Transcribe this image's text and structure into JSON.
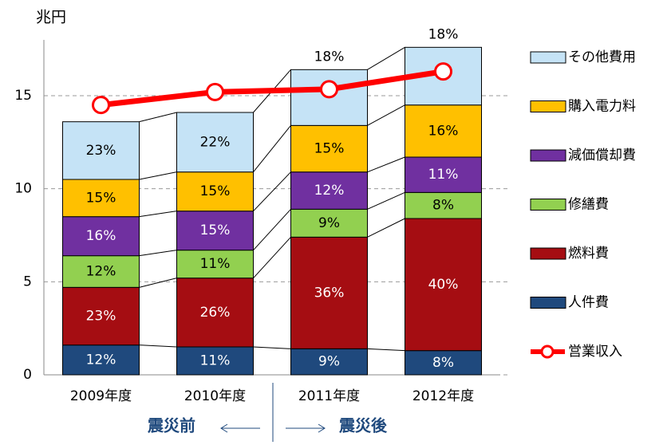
{
  "chart_data": {
    "type": "stacked_bar_line",
    "y_label": "兆円",
    "categories": [
      "2009年度",
      "2010年度",
      "2011年度",
      "2012年度"
    ],
    "ylim": [
      0,
      18
    ],
    "yticks": [
      0,
      5,
      10,
      15
    ],
    "grid": true,
    "legend": "right",
    "series": [
      {
        "name": "人件費",
        "color": "#1f497d",
        "label_color": "#ffffff",
        "values": [
          1.6,
          1.5,
          1.4,
          1.3
        ],
        "share_labels": [
          "12%",
          "11%",
          "9%",
          "8%"
        ]
      },
      {
        "name": "燃料費",
        "color": "#a50d12",
        "label_color": "#ffffff",
        "values": [
          3.1,
          3.7,
          6.0,
          7.1
        ],
        "share_labels": [
          "23%",
          "26%",
          "36%",
          "40%"
        ]
      },
      {
        "name": "修繕費",
        "color": "#92d050",
        "label_color": "#000000",
        "values": [
          1.7,
          1.5,
          1.5,
          1.4
        ],
        "share_labels": [
          "12%",
          "11%",
          "9%",
          "8%"
        ]
      },
      {
        "name": "減価償却費",
        "color": "#7030a0",
        "label_color": "#ffffff",
        "values": [
          2.1,
          2.1,
          2.0,
          1.9
        ],
        "share_labels": [
          "16%",
          "15%",
          "12%",
          "11%"
        ]
      },
      {
        "name": "購入電力料",
        "color": "#ffc000",
        "label_color": "#000000",
        "values": [
          2.0,
          2.1,
          2.5,
          2.8
        ],
        "share_labels": [
          "15%",
          "15%",
          "15%",
          "16%"
        ]
      },
      {
        "name": "その他費用",
        "color": "#c5e3f6",
        "label_color": "#000000",
        "values": [
          3.1,
          3.2,
          3.0,
          3.1
        ],
        "share_labels": [
          "23%",
          "22%",
          "18%",
          "18%"
        ],
        "label_above": [
          false,
          false,
          true,
          true
        ]
      },
      {
        "name": "営業収入",
        "type": "line",
        "color": "#ff0000",
        "values": [
          14.5,
          15.2,
          15.35,
          16.3
        ]
      }
    ],
    "annotations": [
      "震災前",
      "震災後"
    ],
    "annotation_color": "#1f497d"
  }
}
